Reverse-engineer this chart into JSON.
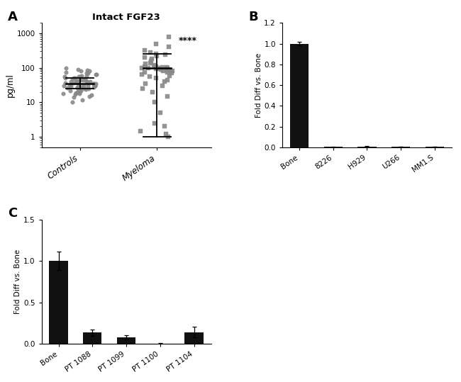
{
  "panel_A": {
    "title": "Intact FGF23",
    "ylabel": "pg/ml",
    "significance": "****",
    "controls_data": [
      75,
      80,
      90,
      70,
      65,
      60,
      55,
      50,
      48,
      45,
      43,
      40,
      38,
      37,
      36,
      35,
      34,
      33,
      32,
      31,
      30,
      30,
      29,
      28,
      27,
      26,
      25,
      25,
      24,
      23,
      22,
      20,
      19,
      18,
      17,
      16,
      15,
      14,
      12,
      10,
      55,
      50,
      48,
      45,
      42,
      40,
      38,
      35,
      32,
      30,
      28,
      26,
      25,
      22,
      20,
      18,
      100,
      85,
      80,
      70,
      65,
      60,
      55,
      50,
      45,
      40,
      35,
      30
    ],
    "myeloma_data": [
      800,
      500,
      400,
      320,
      280,
      260,
      240,
      220,
      200,
      180,
      160,
      140,
      130,
      120,
      110,
      105,
      100,
      100,
      95,
      90,
      85,
      80,
      75,
      70,
      65,
      60,
      55,
      50,
      45,
      40,
      35,
      30,
      25,
      20,
      15,
      10,
      5,
      2,
      1,
      1.2,
      1.5,
      2.5,
      110,
      100,
      95,
      90,
      85,
      80,
      75,
      100,
      105,
      110
    ],
    "ctrl_median": 35,
    "ctrl_q1": 25,
    "ctrl_q3": 50,
    "myel_median": 100,
    "myel_q1": 1,
    "myel_q3": 250,
    "ylim_log": [
      0.5,
      2000
    ],
    "yticks": [
      1,
      10,
      100,
      1000
    ],
    "color": "#888888"
  },
  "panel_B": {
    "categories": [
      "Bone",
      "8226",
      "H929",
      "U266",
      "MM1.S"
    ],
    "values": [
      1.0,
      0.003,
      0.008,
      0.005,
      0.005
    ],
    "errors": [
      0.018,
      0.001,
      0.002,
      0.001,
      0.001
    ],
    "ylabel": "Fold Diff vs. Bone",
    "ylim": [
      0,
      1.2
    ],
    "yticks": [
      0.0,
      0.2,
      0.4,
      0.6,
      0.8,
      1.0,
      1.2
    ],
    "color": "#111111"
  },
  "panel_C": {
    "categories": [
      "Bone",
      "PT 1088",
      "PT 1099",
      "PT 1100",
      "PT 1104"
    ],
    "values": [
      1.0,
      0.135,
      0.08,
      0.005,
      0.14
    ],
    "errors": [
      0.11,
      0.04,
      0.025,
      0.003,
      0.065
    ],
    "ylabel": "Fold Diff vs. Bone",
    "ylim": [
      0,
      1.5
    ],
    "yticks": [
      0.0,
      0.5,
      1.0,
      1.5
    ],
    "color": "#111111"
  },
  "bg_color": "#ffffff"
}
